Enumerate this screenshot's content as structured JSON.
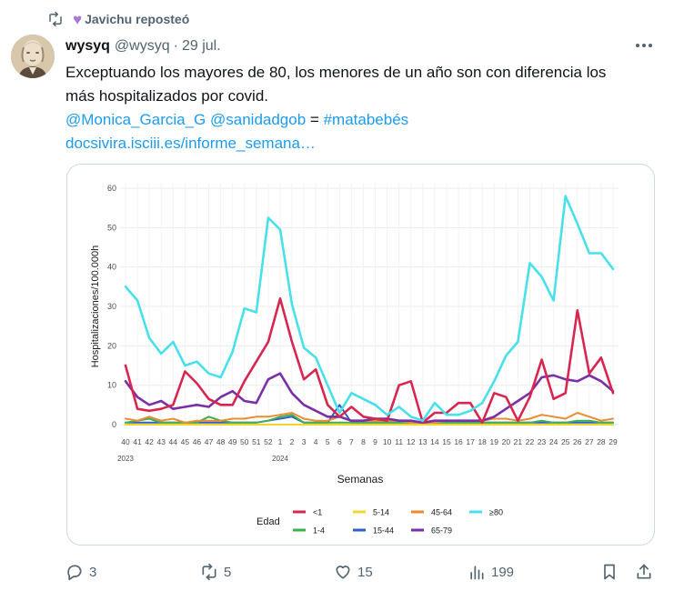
{
  "repost": {
    "label": "Javichu reposteó"
  },
  "tweet": {
    "name": "wysyq",
    "handle": "@wysyq",
    "separator": "·",
    "date": "29 jul.",
    "text_line1": "Exceptuando los mayores de 80, los menores de un año son con diferencia los",
    "text_line2": "más hospitalizados por covid.",
    "mention1": "@Monica_Garcia_G",
    "mention2": "@sanidadgob",
    "equals": "=",
    "hashtag": "#matabebés",
    "url": "docsivira.isciii.es/informe_semana…"
  },
  "actions": {
    "replies": "3",
    "reposts": "5",
    "likes": "15",
    "views": "199"
  },
  "colors": {
    "accent": "#1d9bf0",
    "muted": "#536471",
    "repost_heart": "#a77ad8"
  },
  "chart_data": {
    "type": "line",
    "ylabel": "Hospitalizaciones/100.000h",
    "xlabel": "Semanas",
    "ylim": [
      0,
      60
    ],
    "yticks": [
      0,
      10,
      20,
      30,
      40,
      50,
      60
    ],
    "categories": [
      "40",
      "41",
      "42",
      "43",
      "44",
      "45",
      "46",
      "47",
      "48",
      "49",
      "50",
      "51",
      "52",
      "1",
      "2",
      "3",
      "4",
      "5",
      "6",
      "7",
      "8",
      "9",
      "10",
      "11",
      "12",
      "13",
      "14",
      "15",
      "16",
      "17",
      "18",
      "19",
      "20",
      "21",
      "22",
      "23",
      "24",
      "25",
      "26",
      "27",
      "28",
      "29"
    ],
    "year_labels": [
      {
        "label": "2023",
        "at_index": 0
      },
      {
        "label": "2024",
        "at_index": 13
      }
    ],
    "legend_title": "Edad",
    "series": [
      {
        "name": "<1",
        "color": "#d7264f",
        "values": [
          15,
          4,
          3.5,
          4,
          5,
          13.5,
          10.5,
          6.5,
          5,
          5,
          11,
          16,
          21,
          32,
          21,
          11.5,
          14,
          5,
          2,
          4.5,
          2,
          1.5,
          1,
          10,
          11,
          0.5,
          3,
          3,
          5.5,
          5.5,
          0.5,
          8,
          7,
          1,
          7,
          16.5,
          6.5,
          8,
          29,
          13,
          17,
          8
        ]
      },
      {
        "name": "1-4",
        "color": "#3cb04e",
        "values": [
          0.5,
          1,
          1.5,
          0.5,
          0.5,
          0.5,
          0.5,
          2,
          1,
          0.5,
          0.5,
          0.5,
          1,
          2,
          2.5,
          0.5,
          0.5,
          0.5,
          0.5,
          0.5,
          0.5,
          0.5,
          0.5,
          0.5,
          0.5,
          0.5,
          0.5,
          0.5,
          0.5,
          0.5,
          0.5,
          0.5,
          0.5,
          0.5,
          0.5,
          1,
          0.5,
          0.5,
          1,
          1,
          0.5,
          0.5
        ]
      },
      {
        "name": "5-14",
        "color": "#f2d62a",
        "values": [
          0,
          0,
          0,
          0,
          0,
          0,
          0,
          0,
          0,
          0,
          0,
          0,
          0,
          0,
          0,
          0,
          0,
          0,
          0,
          0,
          0,
          0,
          0,
          0,
          0,
          0,
          0,
          0,
          0,
          0,
          0,
          0,
          0,
          0,
          0,
          0,
          0,
          0,
          0,
          0,
          0,
          0
        ]
      },
      {
        "name": "15-44",
        "color": "#2f5ec9",
        "values": [
          0.5,
          0.5,
          0.5,
          0.5,
          0.5,
          0.5,
          0.5,
          0.5,
          0.5,
          0.5,
          0.5,
          0.5,
          1,
          1.5,
          2,
          0.5,
          0.5,
          0.5,
          5,
          0.5,
          0.5,
          0.5,
          0.5,
          0.5,
          0.5,
          0.5,
          0.5,
          0.5,
          0.5,
          0.5,
          0.5,
          0.5,
          0.5,
          0.5,
          0.5,
          0.5,
          0.5,
          0.5,
          0.5,
          0.5,
          0.5,
          0.5
        ]
      },
      {
        "name": "45-64",
        "color": "#ee8a2f",
        "values": [
          1.5,
          1,
          2,
          1,
          1.5,
          0.5,
          1,
          1,
          1,
          1.5,
          1.5,
          2,
          2,
          2.5,
          3,
          1.5,
          1,
          1,
          2,
          1,
          1,
          1,
          1,
          1,
          0.5,
          0.5,
          0.5,
          1,
          1,
          1,
          1,
          1.5,
          1.5,
          1,
          1.5,
          2.5,
          2,
          1.5,
          3,
          2,
          1,
          1.5
        ]
      },
      {
        "name": "65-79",
        "color": "#7b2fa6",
        "values": [
          11,
          7,
          5,
          6,
          4,
          4.5,
          5,
          4.5,
          7,
          8.5,
          6,
          5.5,
          11.5,
          13,
          8,
          5,
          3.5,
          2,
          2,
          1,
          1,
          1.5,
          1.5,
          1,
          1,
          0.5,
          1,
          1,
          1,
          1,
          1,
          2,
          4,
          6,
          8,
          12,
          12.5,
          11.5,
          11,
          12.5,
          11,
          8.5
        ]
      },
      {
        "name": "≥80",
        "color": "#48e0ea",
        "values": [
          35,
          31.5,
          22,
          18,
          21,
          15,
          16,
          13,
          12,
          18.5,
          29.5,
          28.5,
          52.5,
          49.5,
          30.5,
          19.5,
          17,
          10,
          3,
          8,
          6.5,
          5,
          2.5,
          4.5,
          2,
          1,
          5.5,
          2.5,
          2.5,
          3.5,
          5.5,
          11,
          17.5,
          21,
          41,
          37.5,
          31.5,
          58,
          51,
          43.5,
          43.5,
          39.5
        ]
      }
    ]
  }
}
